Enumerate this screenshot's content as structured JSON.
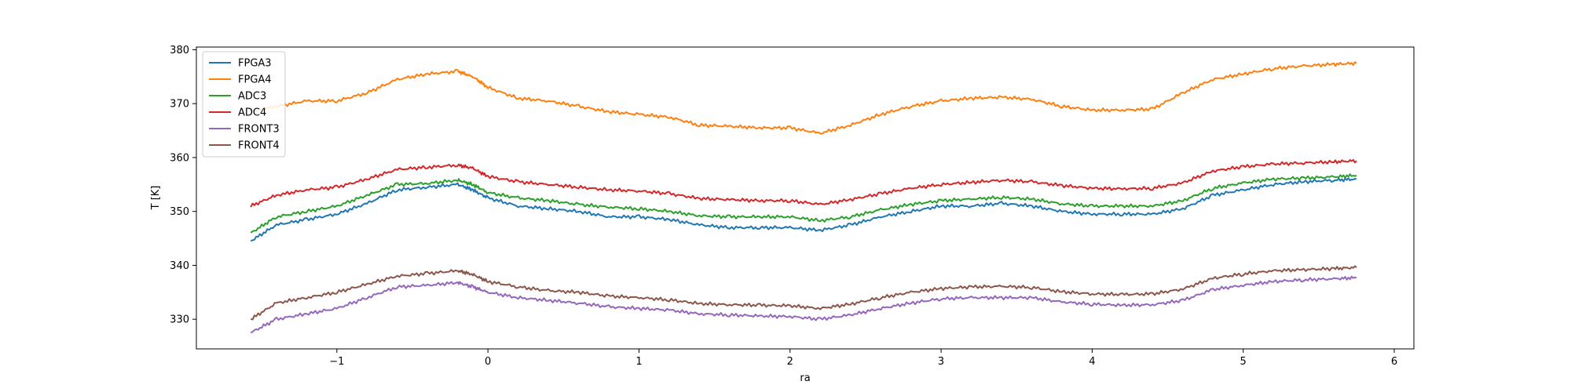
{
  "chart_data": {
    "type": "line",
    "title": "",
    "xlabel": "ra",
    "ylabel": "T [K]",
    "xlim": [
      -1.93,
      6.13
    ],
    "ylim": [
      324.5,
      380.5
    ],
    "xticks": [
      -1,
      0,
      1,
      2,
      3,
      4,
      5,
      6
    ],
    "yticks": [
      330,
      340,
      350,
      360,
      370,
      380
    ],
    "grid": false,
    "legend_position": "upper-left",
    "x": [
      -1.57,
      -1.4,
      -1.2,
      -1.0,
      -0.8,
      -0.6,
      -0.4,
      -0.2,
      -0.1,
      0.0,
      0.2,
      0.4,
      0.6,
      0.8,
      1.0,
      1.2,
      1.4,
      1.6,
      1.8,
      2.0,
      2.2,
      2.4,
      2.6,
      2.8,
      3.0,
      3.2,
      3.4,
      3.6,
      3.8,
      4.0,
      4.2,
      4.4,
      4.6,
      4.8,
      5.0,
      5.2,
      5.4,
      5.6,
      5.75
    ],
    "series": [
      {
        "name": "FPGA3",
        "color": "#1f77b4",
        "values": [
          344.5,
          347.5,
          348.5,
          349.5,
          351.5,
          354.0,
          354.5,
          355.0,
          354.0,
          352.5,
          351.0,
          350.5,
          350.0,
          349.0,
          349.0,
          348.5,
          347.5,
          347.0,
          347.0,
          347.0,
          346.5,
          347.5,
          349.0,
          350.0,
          351.0,
          351.0,
          351.5,
          351.0,
          350.0,
          349.5,
          349.5,
          349.5,
          350.5,
          353.0,
          354.0,
          355.0,
          355.5,
          355.8,
          356.0
        ]
      },
      {
        "name": "FPGA4",
        "color": "#ff7f0e",
        "values": [
          368.5,
          369.5,
          370.5,
          370.5,
          372.0,
          374.5,
          375.5,
          376.0,
          375.0,
          373.0,
          371.0,
          370.5,
          369.5,
          368.5,
          368.0,
          367.5,
          366.0,
          365.8,
          365.5,
          365.5,
          364.5,
          366.0,
          368.0,
          369.5,
          370.5,
          371.0,
          371.2,
          370.8,
          369.5,
          368.8,
          368.8,
          369.0,
          372.0,
          374.5,
          375.5,
          376.5,
          377.0,
          377.3,
          377.5
        ]
      },
      {
        "name": "ADC3",
        "color": "#2ca02c",
        "values": [
          346.0,
          349.0,
          350.0,
          351.0,
          353.0,
          355.0,
          355.2,
          355.8,
          355.0,
          353.5,
          352.5,
          352.0,
          351.3,
          350.8,
          350.5,
          350.0,
          349.2,
          349.0,
          349.0,
          349.0,
          348.3,
          349.0,
          350.3,
          351.3,
          352.0,
          352.3,
          352.6,
          352.3,
          351.4,
          351.0,
          351.0,
          351.0,
          352.0,
          354.3,
          355.3,
          356.0,
          356.2,
          356.4,
          356.7
        ]
      },
      {
        "name": "ADC4",
        "color": "#d62728",
        "values": [
          351.0,
          353.0,
          354.0,
          354.5,
          356.0,
          357.8,
          358.2,
          358.6,
          358.0,
          356.5,
          355.5,
          355.0,
          354.5,
          354.0,
          353.8,
          353.3,
          352.4,
          352.2,
          352.0,
          352.0,
          351.3,
          352.2,
          353.3,
          354.3,
          355.0,
          355.4,
          355.8,
          355.5,
          354.8,
          354.3,
          354.2,
          354.3,
          355.3,
          357.5,
          358.3,
          358.8,
          359.0,
          359.2,
          359.4
        ]
      },
      {
        "name": "FRONT3",
        "color": "#9467bd",
        "values": [
          327.5,
          330.0,
          331.0,
          332.0,
          334.0,
          336.0,
          336.3,
          336.8,
          336.0,
          335.0,
          334.0,
          333.5,
          333.0,
          332.3,
          332.0,
          331.7,
          331.0,
          330.8,
          330.6,
          330.5,
          330.0,
          330.8,
          332.0,
          333.0,
          333.8,
          334.0,
          334.0,
          334.0,
          333.2,
          332.8,
          332.6,
          332.7,
          333.5,
          335.5,
          336.3,
          337.0,
          337.3,
          337.5,
          337.7
        ]
      },
      {
        "name": "FRONT4",
        "color": "#8c564b",
        "values": [
          330.0,
          333.0,
          334.0,
          335.0,
          336.5,
          338.0,
          338.5,
          339.0,
          338.3,
          337.0,
          336.0,
          335.3,
          335.0,
          334.3,
          334.0,
          333.6,
          332.9,
          332.7,
          332.6,
          332.5,
          332.0,
          332.8,
          334.0,
          335.0,
          335.7,
          336.0,
          336.1,
          335.9,
          335.1,
          334.7,
          334.6,
          334.7,
          335.6,
          337.6,
          338.4,
          339.0,
          339.2,
          339.4,
          339.6
        ]
      }
    ]
  }
}
